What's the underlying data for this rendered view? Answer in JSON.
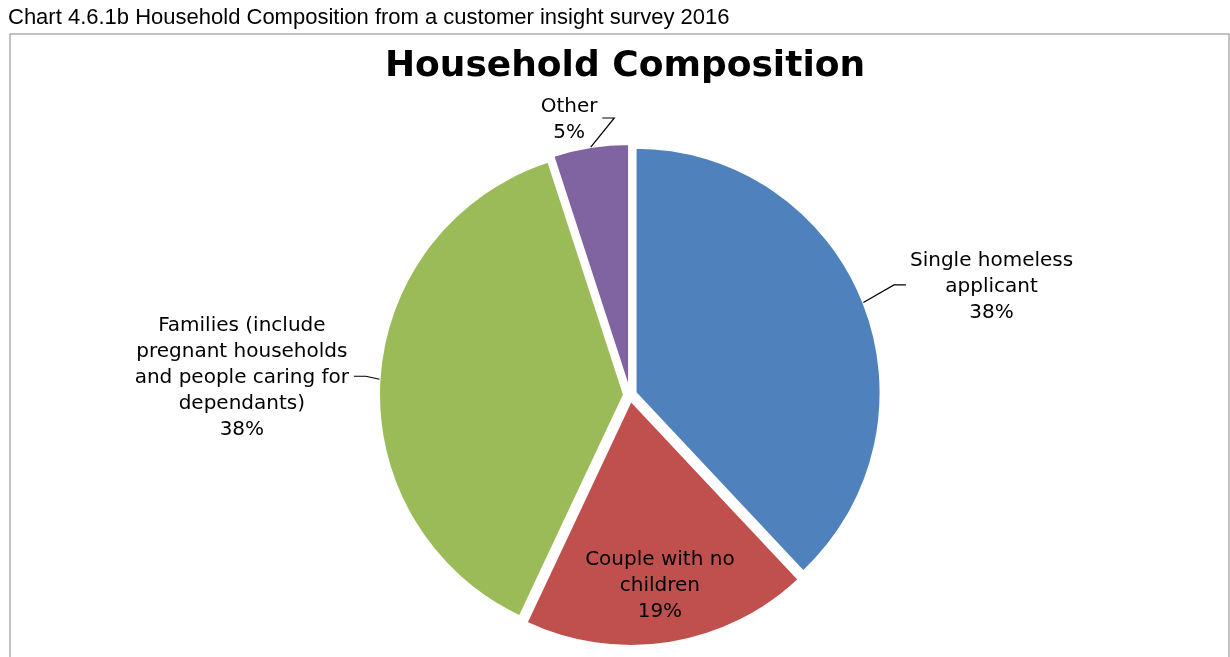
{
  "chart_data": {
    "type": "pie",
    "title": "Household Composition",
    "annotations": [
      "Chart 4.6.1b Household Composition from a customer insight survey 2016"
    ],
    "categories": [
      "Single homeless applicant",
      "Couple with no children",
      "Families (include pregnant households and people caring for dependants)",
      "Other"
    ],
    "values": [
      38,
      19,
      38,
      5
    ],
    "value_labels": [
      "38%",
      "19%",
      "38%",
      "5%"
    ],
    "colors": [
      "#4f81bd",
      "#c0504d",
      "#9bbb59",
      "#8064a2"
    ]
  }
}
